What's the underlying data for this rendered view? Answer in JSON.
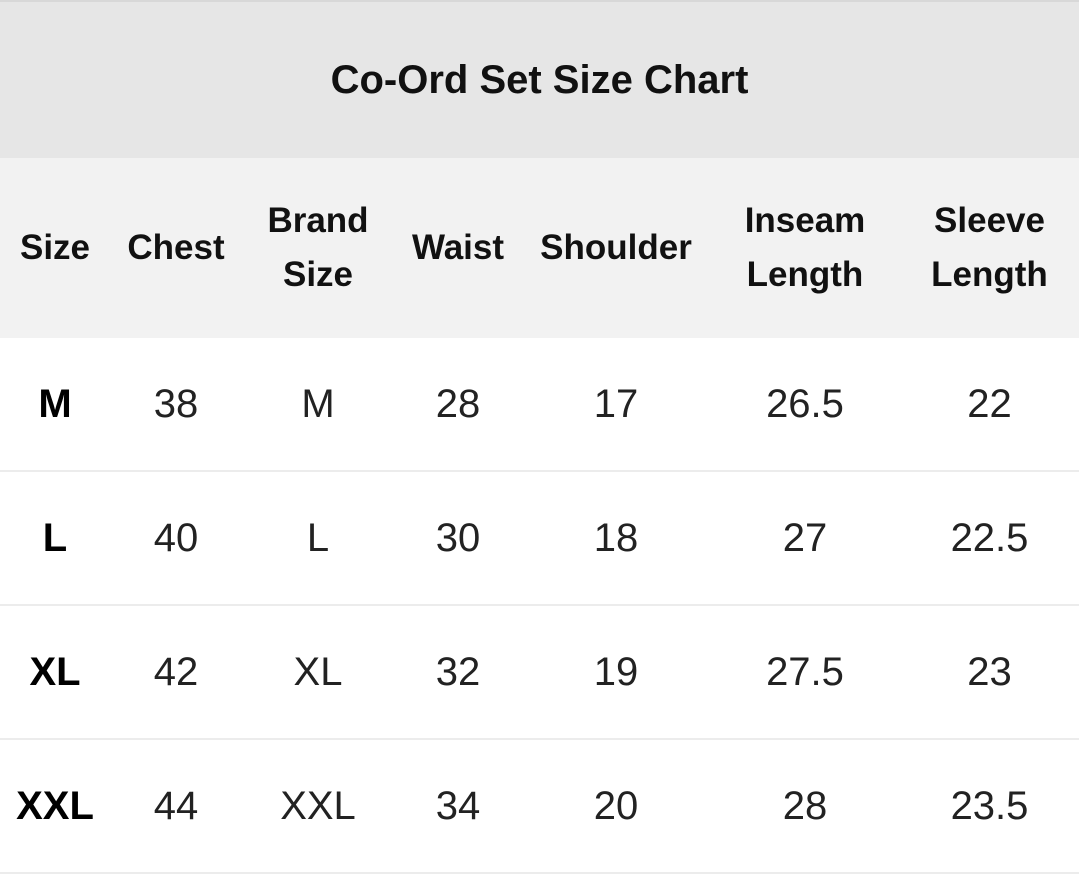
{
  "title": "Co-Ord Set Size Chart",
  "headers": [
    [
      "Size",
      ""
    ],
    [
      "Chest",
      ""
    ],
    [
      "Brand",
      "Size"
    ],
    [
      "Waist",
      ""
    ],
    [
      "Shoulder",
      ""
    ],
    [
      "Inseam",
      "Length"
    ],
    [
      "Sleeve",
      "Length"
    ]
  ],
  "rows": [
    [
      "M",
      "38",
      "M",
      "28",
      "17",
      "26.5",
      "22"
    ],
    [
      "L",
      "40",
      "L",
      "30",
      "18",
      "27",
      "22.5"
    ],
    [
      "XL",
      "42",
      "XL",
      "32",
      "19",
      "27.5",
      "23"
    ],
    [
      "XXL",
      "44",
      "XXL",
      "34",
      "20",
      "28",
      "23.5"
    ]
  ]
}
